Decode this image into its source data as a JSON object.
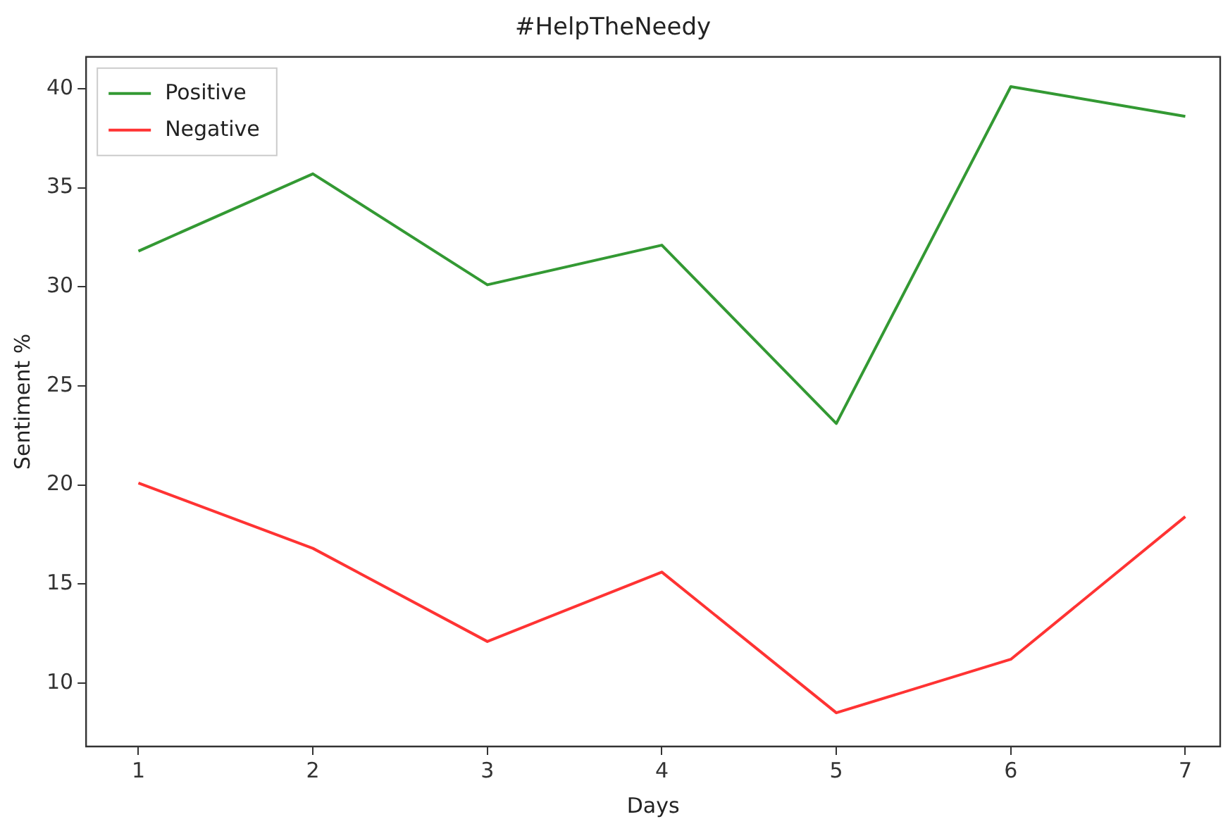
{
  "chart_data": {
    "type": "line",
    "title": "#HelpTheNeedy",
    "xlabel": "Days",
    "ylabel": "Sentiment %",
    "x": [
      1,
      2,
      3,
      4,
      5,
      6,
      7
    ],
    "series": [
      {
        "name": "Positive",
        "color": "#339933",
        "values": [
          31.8,
          35.7,
          30.1,
          32.1,
          23.1,
          40.1,
          38.6
        ]
      },
      {
        "name": "Negative",
        "color": "#ff3333",
        "values": [
          20.1,
          16.8,
          12.1,
          15.6,
          8.5,
          11.2,
          18.4
        ]
      }
    ],
    "xlim": [
      0.7,
      7.2
    ],
    "ylim": [
      6.8,
      41.6
    ],
    "xticks": [
      1,
      2,
      3,
      4,
      5,
      6,
      7
    ],
    "yticks": [
      10,
      15,
      20,
      25,
      30,
      35,
      40
    ],
    "grid": false,
    "legend": "top left",
    "marker": "none",
    "line_style": "solid"
  }
}
